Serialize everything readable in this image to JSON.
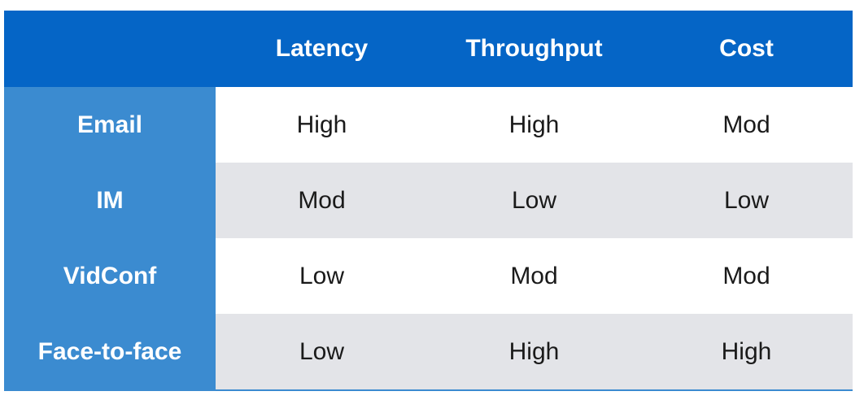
{
  "table": {
    "header": [
      "",
      "Latency",
      "Throughput",
      "Cost"
    ],
    "rows": [
      [
        "Email",
        "High",
        "High",
        "Mod"
      ],
      [
        "IM",
        "Mod",
        "Low",
        "Low"
      ],
      [
        "VidConf",
        "Low",
        "Mod",
        "Mod"
      ],
      [
        "Face-to-face",
        "Low",
        "High",
        "High"
      ]
    ]
  }
}
